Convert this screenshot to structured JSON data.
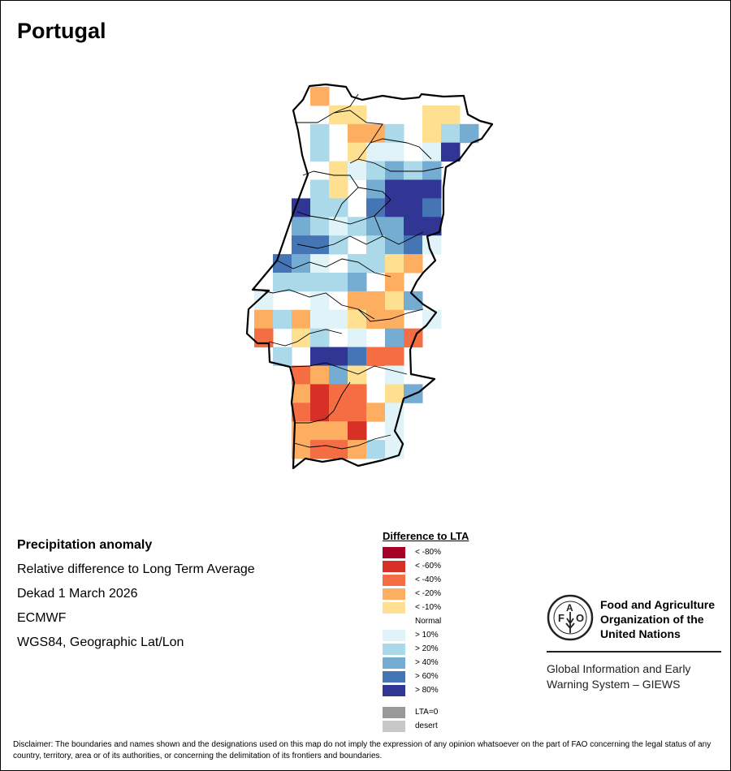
{
  "title": "Portugal",
  "info": {
    "heading": "Precipitation anomaly",
    "line1": "Relative difference to Long Term Average",
    "line2": "Dekad 1 March 2026",
    "line3": "ECMWF",
    "line4": "WGS84, Geographic Lat/Lon"
  },
  "legend": {
    "title": "Difference to LTA",
    "items": [
      {
        "code": "X",
        "label": "< -80%",
        "color": "#a50026"
      },
      {
        "code": "D",
        "label": "< -60%",
        "color": "#d73027"
      },
      {
        "code": "R",
        "label": "< -40%",
        "color": "#f46d43"
      },
      {
        "code": "O",
        "label": "< -20%",
        "color": "#fdae61"
      },
      {
        "code": "Y",
        "label": "< -10%",
        "color": "#fee090"
      },
      {
        "code": "W",
        "label": "Normal",
        "color": "#ffffff"
      },
      {
        "code": "1",
        "label": "> 10%",
        "color": "#e0f3f8"
      },
      {
        "code": "2",
        "label": "> 20%",
        "color": "#abd9e9"
      },
      {
        "code": "3",
        "label": "> 40%",
        "color": "#74add1"
      },
      {
        "code": "4",
        "label": "> 60%",
        "color": "#4575b4"
      },
      {
        "code": "5",
        "label": "> 80%",
        "color": "#313695"
      }
    ],
    "extra": [
      {
        "label": "LTA=0",
        "color": "#999999"
      },
      {
        "label": "desert",
        "color": "#c8c8c8"
      }
    ]
  },
  "anomaly_grid": [
    "...O........",
    "....YY...YY.",
    "...2WOO2WY23",
    "...2WY11W15.",
    "...WY12323W.",
    "..W2YW3555..",
    "..522W4554..",
    "..32123355..",
    "..442W2341..",
    ".431W22YOW..",
    ".22223WOW...",
    "1WW1WOOY3...",
    "O2O11YOOW1..",
    "RWY2W1W3R...",
    ".2W554RR....",
    "..RO3YW1W...",
    "..ODRRWY3...",
    "..RDRRO1....",
    "..OOODW1....",
    "..ORRO21...."
  ],
  "fao": {
    "name": "Food and Agriculture Organization of the United Nations",
    "logo_text": "FAO FIAT PANIS",
    "giews": "Global Information and Early Warning System – GIEWS"
  },
  "disclaimer": "Disclaimer: The boundaries and names shown and the designations used on this map do not imply the expression of any opinion whatsoever on the part of FAO concerning the legal status of any country, territory, area or of its authorities, or concerning the delimitation of its frontiers and boundaries."
}
